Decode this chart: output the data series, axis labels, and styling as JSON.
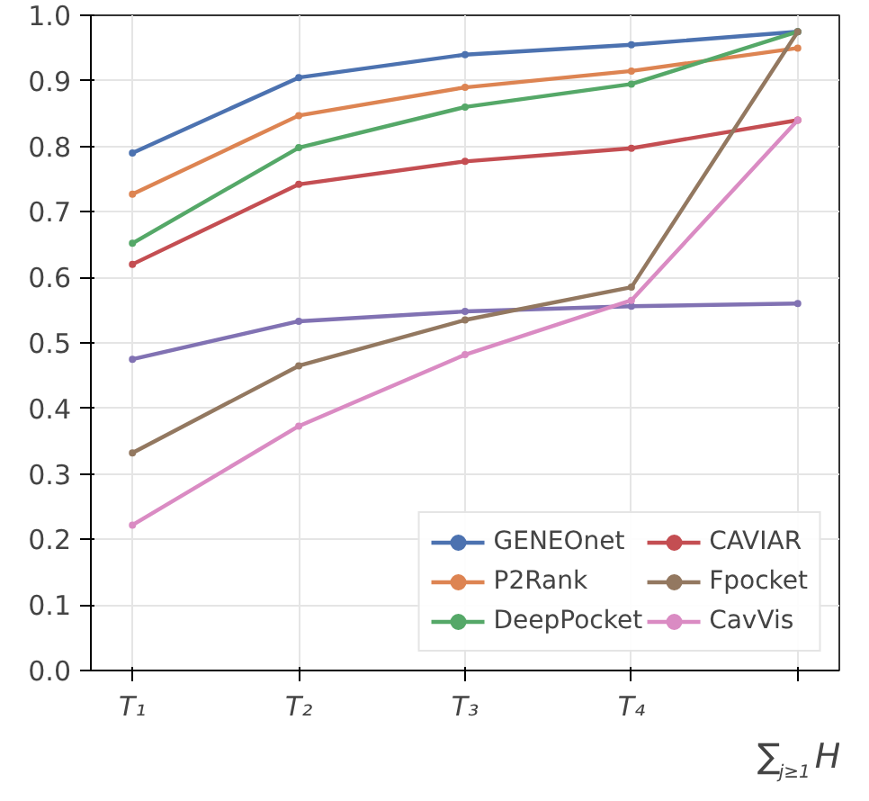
{
  "chart_data": {
    "type": "line",
    "categories": [
      "T₁",
      "T₂",
      "T₃",
      "T₄",
      "∑$_{j≥1}$H"
    ],
    "ylim": [
      0,
      1
    ],
    "yticks": [
      {
        "value": 0,
        "label": "0.0"
      },
      0.1,
      0.2,
      0.3,
      0.4,
      0.5,
      0.6,
      0.7,
      0.8,
      0.9,
      {
        "value": 1,
        "label": "1.0"
      }
    ],
    "grid": true,
    "legend": "bottom right",
    "marker": "circle",
    "line_style": "solid",
    "series": [
      {
        "name": "GENEOnet",
        "color": "#4c72b0",
        "values": [
          0.79,
          0.905,
          0.94,
          0.955,
          0.975
        ]
      },
      {
        "name": "P2Rank",
        "color": "#dd8452",
        "values": [
          0.727,
          0.847,
          0.89,
          0.915,
          0.95
        ]
      },
      {
        "name": "DeepPocket",
        "color": "#55a868",
        "values": [
          0.652,
          0.798,
          0.86,
          0.895,
          0.975
        ]
      },
      {
        "name": "CAVIAR",
        "color": "#c44e52",
        "values": [
          0.62,
          0.742,
          0.777,
          0.797,
          0.84
        ]
      },
      {
        "color": "#8172b3",
        "values": [
          0.475,
          0.533,
          0.548,
          0.556,
          0.56
        ]
      },
      {
        "name": "Fpocket",
        "color": "#937860",
        "values": [
          0.332,
          0.465,
          0.535,
          0.585,
          0.975
        ]
      },
      {
        "name": "CavVis",
        "color": "#da8bc3",
        "values": [
          0.222,
          0.373,
          0.482,
          0.565,
          0.84
        ]
      }
    ]
  }
}
